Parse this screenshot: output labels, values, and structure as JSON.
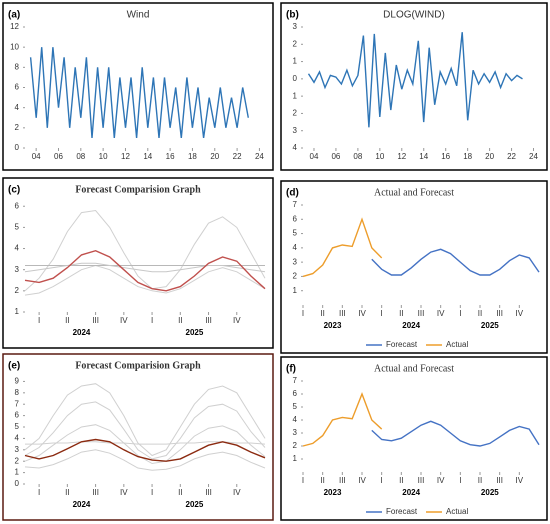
{
  "chart_data": [
    {
      "type": "line",
      "label": "(a)",
      "title": "Wind",
      "x": [
        2003.5,
        2004,
        2004.5,
        2005,
        2005.5,
        2006,
        2006.5,
        2007,
        2007.5,
        2008,
        2008.5,
        2009,
        2009.5,
        2010,
        2010.5,
        2011,
        2011.5,
        2012,
        2012.5,
        2013,
        2013.5,
        2014,
        2014.5,
        2015,
        2015.5,
        2016,
        2016.5,
        2017,
        2017.5,
        2018,
        2018.5,
        2019,
        2019.5,
        2020,
        2020.5,
        2021,
        2021.5,
        2022,
        2022.5,
        2023
      ],
      "xlim": [
        2003,
        2024.5
      ],
      "xticks": [
        {
          "value": 2004,
          "label": "04"
        },
        {
          "value": 2006,
          "label": "06"
        },
        {
          "value": 2008,
          "label": "08"
        },
        {
          "value": 2010,
          "label": "10"
        },
        {
          "value": 2012,
          "label": "12"
        },
        {
          "value": 2014,
          "label": "14"
        },
        {
          "value": 2016,
          "label": "16"
        },
        {
          "value": 2018,
          "label": "18"
        },
        {
          "value": 2020,
          "label": "20"
        },
        {
          "value": 2022,
          "label": "22"
        },
        {
          "value": 2024,
          "label": "24"
        }
      ],
      "ylim": [
        0,
        12
      ],
      "yticks": [
        0,
        2,
        4,
        6,
        8,
        10,
        12
      ],
      "series": [
        {
          "color": "#2e75b6",
          "values": [
            9,
            3,
            10,
            2,
            10,
            4,
            9,
            2,
            8,
            3,
            9,
            1,
            8,
            2,
            8,
            1,
            7,
            2,
            7,
            1,
            8,
            2,
            7,
            1,
            7,
            2,
            6,
            1,
            7,
            2,
            6,
            1,
            5,
            2,
            6,
            2,
            5,
            2,
            6,
            3
          ]
        }
      ]
    },
    {
      "type": "line",
      "label": "(b)",
      "title": "DLOG(WIND)",
      "x": [
        2003.5,
        2004,
        2004.5,
        2005,
        2005.5,
        2006,
        2006.5,
        2007,
        2007.5,
        2008,
        2008.5,
        2009,
        2009.5,
        2010,
        2010.5,
        2011,
        2011.5,
        2012,
        2012.5,
        2013,
        2013.5,
        2014,
        2014.5,
        2015,
        2015.5,
        2016,
        2016.5,
        2017,
        2017.5,
        2018,
        2018.5,
        2019,
        2019.5,
        2020,
        2020.5,
        2021,
        2021.5,
        2022,
        2022.5,
        2023
      ],
      "xlim": [
        2003,
        2024.5
      ],
      "xticks": [
        {
          "value": 2004,
          "label": "04"
        },
        {
          "value": 2006,
          "label": "06"
        },
        {
          "value": 2008,
          "label": "08"
        },
        {
          "value": 2010,
          "label": "10"
        },
        {
          "value": 2012,
          "label": "12"
        },
        {
          "value": 2014,
          "label": "14"
        },
        {
          "value": 2016,
          "label": "16"
        },
        {
          "value": 2018,
          "label": "18"
        },
        {
          "value": 2020,
          "label": "20"
        },
        {
          "value": 2022,
          "label": "22"
        },
        {
          "value": 2024,
          "label": "24"
        }
      ],
      "ylim": [
        -4,
        3
      ],
      "yticks": [
        3,
        2,
        1,
        0,
        {
          "value": -1,
          "label": "1"
        },
        {
          "value": -2,
          "label": "2"
        },
        {
          "value": -3,
          "label": "3"
        },
        {
          "value": -4,
          "label": "4"
        }
      ],
      "series": [
        {
          "color": "#2e75b6",
          "values": [
            0.3,
            -0.2,
            0.4,
            -0.5,
            0.2,
            0.1,
            -0.3,
            0.5,
            -0.4,
            0.2,
            2.5,
            -2.8,
            2.6,
            -2.2,
            1.5,
            -1.8,
            0.8,
            -0.6,
            0.5,
            -0.3,
            2.2,
            -2.5,
            1.8,
            -1.5,
            0.4,
            -0.3,
            0.6,
            -0.4,
            2.7,
            -2.4,
            0.5,
            -0.3,
            0.3,
            -0.2,
            0.4,
            -0.5,
            0.3,
            -0.1,
            0.2,
            0.0
          ]
        }
      ]
    },
    {
      "type": "line",
      "label": "(c)",
      "title": "Forecast Comparision Graph",
      "x": [
        0,
        0.5,
        1,
        1.5,
        2,
        2.5,
        3,
        3.5,
        4,
        4.5,
        5,
        5.5,
        6,
        6.5,
        7,
        7.5,
        8,
        8.5
      ],
      "xlim": [
        0,
        8.5
      ],
      "xticks": [
        {
          "value": 0.5,
          "label": "I"
        },
        {
          "value": 1.5,
          "label": "II"
        },
        {
          "value": 2.5,
          "label": "III"
        },
        {
          "value": 3.5,
          "label": "IV"
        },
        {
          "value": 4.5,
          "label": "I"
        },
        {
          "value": 5.5,
          "label": "II"
        },
        {
          "value": 6.5,
          "label": "III"
        },
        {
          "value": 7.5,
          "label": "IV"
        }
      ],
      "x_groups": [
        {
          "value": 2,
          "label": "2024"
        },
        {
          "value": 6,
          "label": "2025"
        }
      ],
      "ylim": [
        1,
        6.2
      ],
      "yticks": [
        1,
        2,
        3,
        4,
        5,
        6
      ],
      "series": [
        {
          "color": "#d0d0d0",
          "values": [
            2,
            2.6,
            3.5,
            4.8,
            5.7,
            5.8,
            5.0,
            3.8,
            2.7,
            2.1,
            2.2,
            3.0,
            4.2,
            5.2,
            5.5,
            5.0,
            3.8,
            2.6
          ]
        },
        {
          "color": "#d0d0d0",
          "values": [
            1.8,
            1.9,
            2.2,
            2.6,
            3.0,
            3.2,
            3.0,
            2.6,
            2.2,
            2.0,
            1.9,
            2.1,
            2.5,
            2.9,
            3.1,
            2.9,
            2.5,
            2.1
          ]
        },
        {
          "color": "#b8b8b8",
          "values": [
            3.2,
            3.2,
            3.2,
            3.2,
            3.2,
            3.2,
            3.2,
            3.2,
            3.2,
            3.2,
            3.2,
            3.2,
            3.2,
            3.2,
            3.2,
            3.2,
            3.2,
            3.2
          ]
        },
        {
          "color": "#c8c8c8",
          "values": [
            2.9,
            3.0,
            3.1,
            3.2,
            3.3,
            3.3,
            3.2,
            3.1,
            3.0,
            2.9,
            2.9,
            3.0,
            3.1,
            3.2,
            3.2,
            3.1,
            3.0,
            2.9
          ]
        },
        {
          "color": "#c0504d",
          "values": [
            2.5,
            2.4,
            2.6,
            3.1,
            3.7,
            3.9,
            3.6,
            3.0,
            2.4,
            2.1,
            2.0,
            2.2,
            2.7,
            3.3,
            3.6,
            3.4,
            2.7,
            2.1
          ]
        }
      ]
    },
    {
      "type": "line",
      "label": "(d)",
      "title": "Actual and Forecast",
      "x": [
        0,
        0.5,
        1,
        1.5,
        2,
        2.5,
        3,
        3.5,
        4,
        4.5,
        5,
        5.5,
        6,
        6.5,
        7,
        7.5,
        8,
        8.5,
        9,
        9.5,
        10,
        10.5,
        11,
        11.5,
        12
      ],
      "xlim": [
        0,
        12
      ],
      "xticks": [
        {
          "value": 0,
          "label": "I"
        },
        {
          "value": 1,
          "label": "II"
        },
        {
          "value": 2,
          "label": "III"
        },
        {
          "value": 3,
          "label": "IV"
        },
        {
          "value": 4,
          "label": "I"
        },
        {
          "value": 5,
          "label": "II"
        },
        {
          "value": 6,
          "label": "III"
        },
        {
          "value": 7,
          "label": "IV"
        },
        {
          "value": 8,
          "label": "I"
        },
        {
          "value": 9,
          "label": "II"
        },
        {
          "value": 10,
          "label": "III"
        },
        {
          "value": 11,
          "label": "IV"
        }
      ],
      "x_groups": [
        {
          "value": 1.5,
          "label": "2023"
        },
        {
          "value": 5.5,
          "label": "2024"
        },
        {
          "value": 9.5,
          "label": "2025"
        }
      ],
      "ylim": [
        0,
        7
      ],
      "yticks": [
        1,
        2,
        3,
        4,
        5,
        6,
        7
      ],
      "legend": "bottom",
      "series": [
        {
          "name": "Forecast",
          "color": "#4472c4",
          "values": [
            null,
            null,
            null,
            null,
            null,
            null,
            null,
            3.2,
            2.5,
            2.1,
            2.1,
            2.6,
            3.2,
            3.7,
            3.9,
            3.6,
            3.0,
            2.4,
            2.1,
            2.1,
            2.5,
            3.1,
            3.5,
            3.3,
            2.3
          ]
        },
        {
          "name": "Actual",
          "color": "#ed9d2b",
          "values": [
            2.0,
            2.2,
            2.8,
            4.0,
            4.2,
            4.1,
            6.0,
            4.0,
            3.3,
            null,
            null,
            null,
            null,
            null,
            null,
            null,
            null,
            null,
            null,
            null,
            null,
            null,
            null,
            null,
            null
          ]
        }
      ]
    },
    {
      "type": "line",
      "label": "(e)",
      "title": "Forecast Comparision Graph",
      "x": [
        0,
        0.5,
        1,
        1.5,
        2,
        2.5,
        3,
        3.5,
        4,
        4.5,
        5,
        5.5,
        6,
        6.5,
        7,
        7.5,
        8,
        8.5
      ],
      "xlim": [
        0,
        8.5
      ],
      "xticks": [
        {
          "value": 0.5,
          "label": "I"
        },
        {
          "value": 1.5,
          "label": "II"
        },
        {
          "value": 2.5,
          "label": "III"
        },
        {
          "value": 3.5,
          "label": "IV"
        },
        {
          "value": 4.5,
          "label": "I"
        },
        {
          "value": 5.5,
          "label": "II"
        },
        {
          "value": 6.5,
          "label": "III"
        },
        {
          "value": 7.5,
          "label": "IV"
        }
      ],
      "x_groups": [
        {
          "value": 2,
          "label": "2024"
        },
        {
          "value": 6,
          "label": "2025"
        }
      ],
      "ylim": [
        0,
        9.3
      ],
      "yticks": [
        0,
        1,
        2,
        3,
        4,
        5,
        6,
        7,
        8,
        9
      ],
      "series": [
        {
          "color": "#d0d0d0",
          "values": [
            3,
            4,
            6,
            7.8,
            8.6,
            8.8,
            8,
            6,
            3.6,
            2.5,
            3,
            5,
            7,
            8.3,
            8.6,
            8,
            6,
            4
          ]
        },
        {
          "color": "#d0d0d0",
          "values": [
            2.5,
            3.2,
            4.5,
            6,
            7,
            7.2,
            6.5,
            4.8,
            3,
            2.2,
            2.5,
            4,
            5.8,
            6.8,
            7,
            6.4,
            4.6,
            3.2
          ]
        },
        {
          "color": "#d0d0d0",
          "values": [
            2,
            2.5,
            3.4,
            4.3,
            5,
            5.2,
            4.7,
            3.6,
            2.5,
            1.8,
            2,
            3,
            4.2,
            4.9,
            5.1,
            4.6,
            3.4,
            2.4
          ]
        },
        {
          "color": "#d0d0d0",
          "values": [
            3.5,
            3.5,
            3.6,
            3.6,
            3.7,
            3.7,
            3.6,
            3.6,
            3.5,
            3.5,
            3.5,
            3.6,
            3.6,
            3.7,
            3.7,
            3.6,
            3.6,
            3.5
          ]
        },
        {
          "color": "#d0d0d0",
          "values": [
            1.5,
            1.4,
            1.7,
            2.2,
            2.8,
            3.0,
            2.7,
            2.1,
            1.4,
            1.2,
            1.3,
            1.6,
            2.2,
            2.6,
            2.8,
            2.5,
            1.9,
            1.4
          ]
        },
        {
          "color": "#8b2a10",
          "values": [
            2.5,
            2.2,
            2.5,
            3.1,
            3.7,
            3.9,
            3.7,
            3.0,
            2.4,
            2.1,
            2.0,
            2.2,
            2.8,
            3.4,
            3.7,
            3.4,
            2.8,
            2.3
          ]
        }
      ]
    },
    {
      "type": "line",
      "label": "(f)",
      "title": "Actual and Forecast",
      "x": [
        0,
        0.5,
        1,
        1.5,
        2,
        2.5,
        3,
        3.5,
        4,
        4.5,
        5,
        5.5,
        6,
        6.5,
        7,
        7.5,
        8,
        8.5,
        9,
        9.5,
        10,
        10.5,
        11,
        11.5,
        12
      ],
      "xlim": [
        0,
        12
      ],
      "xticks": [
        {
          "value": 0,
          "label": "I"
        },
        {
          "value": 1,
          "label": "II"
        },
        {
          "value": 2,
          "label": "III"
        },
        {
          "value": 3,
          "label": "IV"
        },
        {
          "value": 4,
          "label": "I"
        },
        {
          "value": 5,
          "label": "II"
        },
        {
          "value": 6,
          "label": "III"
        },
        {
          "value": 7,
          "label": "IV"
        },
        {
          "value": 8,
          "label": "I"
        },
        {
          "value": 9,
          "label": "II"
        },
        {
          "value": 10,
          "label": "III"
        },
        {
          "value": 11,
          "label": "IV"
        }
      ],
      "x_groups": [
        {
          "value": 1.5,
          "label": "2023"
        },
        {
          "value": 5.5,
          "label": "2024"
        },
        {
          "value": 9.5,
          "label": "2025"
        }
      ],
      "ylim": [
        0,
        7
      ],
      "yticks": [
        1,
        2,
        3,
        4,
        5,
        6,
        7
      ],
      "legend": "bottom",
      "series": [
        {
          "name": "Forecast",
          "color": "#4472c4",
          "values": [
            null,
            null,
            null,
            null,
            null,
            null,
            null,
            3.2,
            2.5,
            2.4,
            2.6,
            3.1,
            3.6,
            3.9,
            3.6,
            3.0,
            2.4,
            2.1,
            2.0,
            2.2,
            2.7,
            3.2,
            3.5,
            3.3,
            2.1
          ]
        },
        {
          "name": "Actual",
          "color": "#ed9d2b",
          "values": [
            2.0,
            2.2,
            2.8,
            4.0,
            4.2,
            4.1,
            6.0,
            4.0,
            3.3,
            null,
            null,
            null,
            null,
            null,
            null,
            null,
            null,
            null,
            null,
            null,
            null,
            null,
            null,
            null,
            null
          ]
        }
      ]
    }
  ]
}
